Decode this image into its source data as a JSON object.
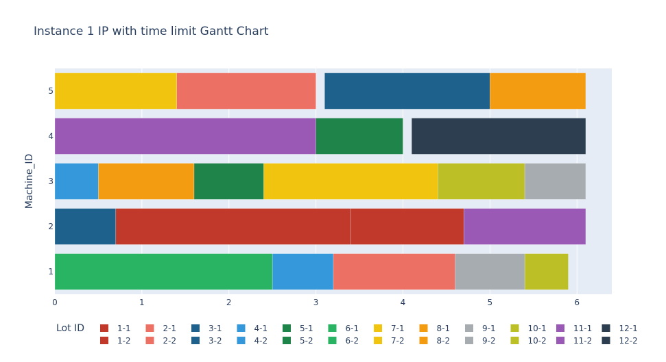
{
  "chart_data": {
    "type": "gantt",
    "title": "Instance 1 IP with time limit Gantt Chart",
    "ylabel": "Machine_ID",
    "xlabel": "",
    "xlim": [
      0,
      6.4
    ],
    "x_ticks": [
      "0",
      "1",
      "2",
      "3",
      "4",
      "5",
      "6"
    ],
    "y_categories": [
      "1",
      "2",
      "3",
      "4",
      "5"
    ],
    "legend_title": "Lot ID",
    "legend_position": "bottom",
    "colors": {
      "1": "#c0392b",
      "2": "#ec7063",
      "3": "#1f618d",
      "4": "#3498db",
      "5": "#1e8449",
      "6": "#28b463",
      "7": "#f1c40f",
      "8": "#f39c12",
      "9": "#a6acaf",
      "10": "#bcbf26",
      "11": "#9b59b6",
      "12": "#2c3e50"
    },
    "legend": [
      {
        "label": "1-1",
        "lot": "1"
      },
      {
        "label": "2-1",
        "lot": "2"
      },
      {
        "label": "3-1",
        "lot": "3"
      },
      {
        "label": "4-1",
        "lot": "4"
      },
      {
        "label": "5-1",
        "lot": "5"
      },
      {
        "label": "6-1",
        "lot": "6"
      },
      {
        "label": "7-1",
        "lot": "7"
      },
      {
        "label": "8-1",
        "lot": "8"
      },
      {
        "label": "9-1",
        "lot": "9"
      },
      {
        "label": "10-1",
        "lot": "10"
      },
      {
        "label": "11-1",
        "lot": "11"
      },
      {
        "label": "12-1",
        "lot": "12"
      },
      {
        "label": "1-2",
        "lot": "1"
      },
      {
        "label": "2-2",
        "lot": "2"
      },
      {
        "label": "3-2",
        "lot": "3"
      },
      {
        "label": "4-2",
        "lot": "4"
      },
      {
        "label": "5-2",
        "lot": "5"
      },
      {
        "label": "6-2",
        "lot": "6"
      },
      {
        "label": "7-2",
        "lot": "7"
      },
      {
        "label": "8-2",
        "lot": "8"
      },
      {
        "label": "9-2",
        "lot": "9"
      },
      {
        "label": "10-2",
        "lot": "10"
      },
      {
        "label": "11-2",
        "lot": "11"
      },
      {
        "label": "12-2",
        "lot": "12"
      }
    ],
    "tasks": [
      {
        "machine": "5",
        "lot": "7",
        "start": 0.0,
        "end": 1.4
      },
      {
        "machine": "5",
        "lot": "2",
        "start": 1.4,
        "end": 3.0
      },
      {
        "machine": "5",
        "lot": "3",
        "start": 3.1,
        "end": 5.0
      },
      {
        "machine": "5",
        "lot": "8",
        "start": 5.0,
        "end": 6.1
      },
      {
        "machine": "4",
        "lot": "11",
        "start": 0.0,
        "end": 3.0
      },
      {
        "machine": "4",
        "lot": "5",
        "start": 3.0,
        "end": 4.0
      },
      {
        "machine": "4",
        "lot": "12",
        "start": 4.1,
        "end": 6.1
      },
      {
        "machine": "3",
        "lot": "4",
        "start": 0.0,
        "end": 0.5
      },
      {
        "machine": "3",
        "lot": "8",
        "start": 0.5,
        "end": 1.6
      },
      {
        "machine": "3",
        "lot": "5",
        "start": 1.6,
        "end": 2.4
      },
      {
        "machine": "3",
        "lot": "7",
        "start": 2.4,
        "end": 4.4
      },
      {
        "machine": "3",
        "lot": "10",
        "start": 4.4,
        "end": 5.4
      },
      {
        "machine": "3",
        "lot": "9",
        "start": 5.4,
        "end": 6.1
      },
      {
        "machine": "2",
        "lot": "3",
        "start": 0.0,
        "end": 0.7
      },
      {
        "machine": "2",
        "lot": "1",
        "start": 0.7,
        "end": 3.4
      },
      {
        "machine": "2",
        "lot": "1",
        "start": 3.4,
        "end": 4.7
      },
      {
        "machine": "2",
        "lot": "11",
        "start": 4.7,
        "end": 6.1
      },
      {
        "machine": "1",
        "lot": "6",
        "start": 0.0,
        "end": 2.5
      },
      {
        "machine": "1",
        "lot": "4",
        "start": 2.5,
        "end": 3.2
      },
      {
        "machine": "1",
        "lot": "2",
        "start": 3.2,
        "end": 4.6
      },
      {
        "machine": "1",
        "lot": "9",
        "start": 4.6,
        "end": 5.4
      },
      {
        "machine": "1",
        "lot": "10",
        "start": 5.4,
        "end": 5.9
      }
    ]
  }
}
